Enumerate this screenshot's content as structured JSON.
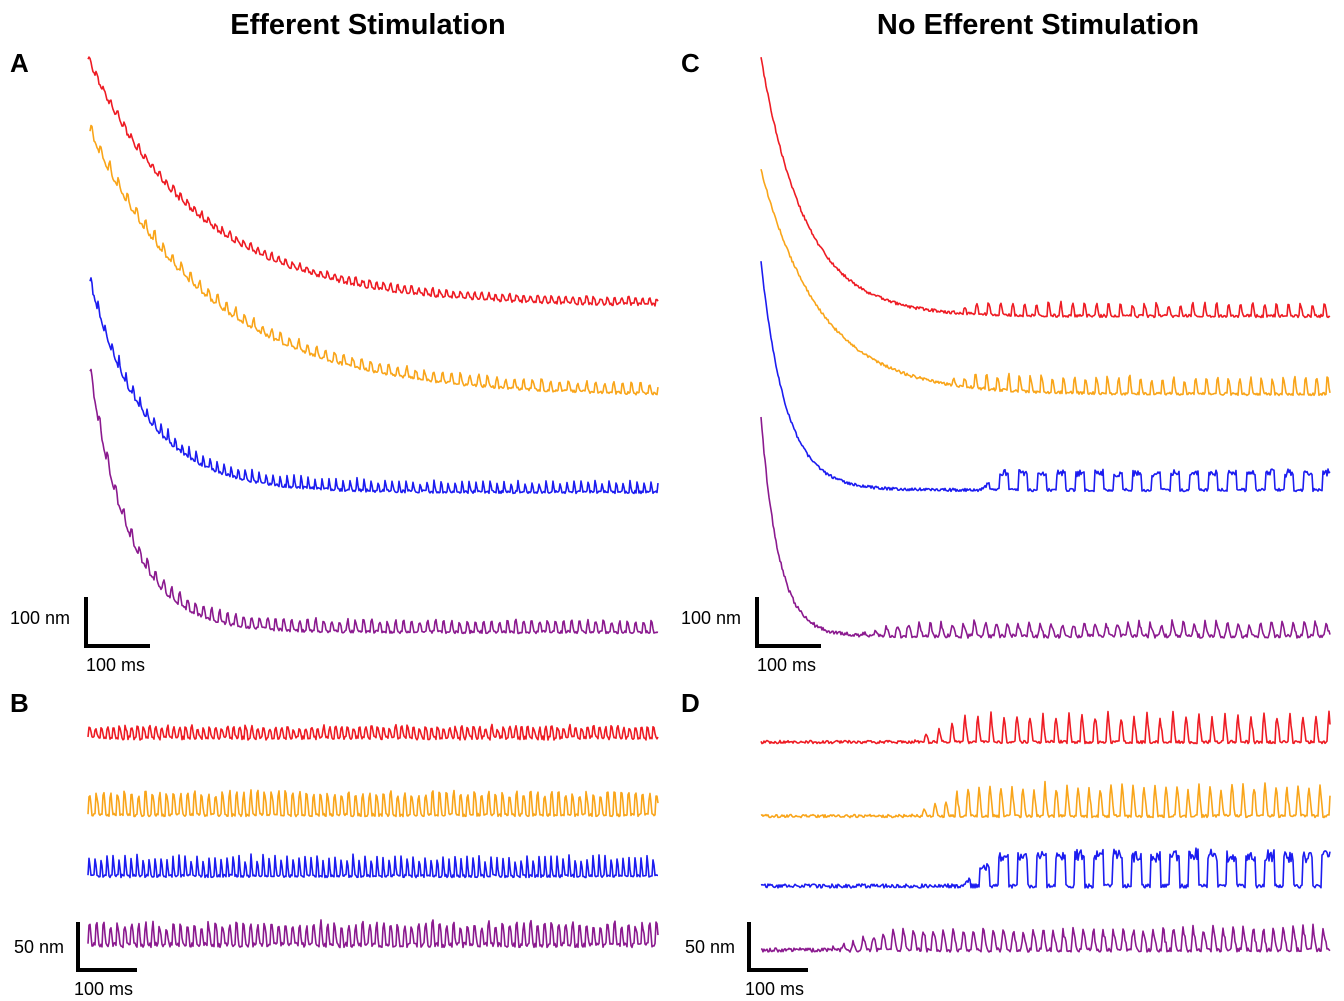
{
  "figure": {
    "columns": [
      {
        "title": "Efferent Stimulation"
      },
      {
        "title": "No Efferent Stimulation"
      }
    ],
    "colors": {
      "red": "#ee1c24",
      "orange": "#f9a51a",
      "blue": "#1c1cf0",
      "purple": "#8b1a8f"
    }
  },
  "chart_data": [
    {
      "type": "line",
      "panel": "A",
      "title": "",
      "scale_bar": {
        "y_label": "100 nm",
        "x_label": "100 ms"
      },
      "trace_order": [
        "red",
        "orange",
        "blue",
        "purple"
      ]
    },
    {
      "type": "line",
      "panel": "B",
      "title": "",
      "scale_bar": {
        "y_label": "50 nm",
        "x_label": "100 ms"
      },
      "trace_order": [
        "red",
        "orange",
        "blue",
        "purple"
      ]
    },
    {
      "type": "line",
      "panel": "C",
      "title": "",
      "scale_bar": {
        "y_label": "100 nm",
        "x_label": "100 ms"
      },
      "trace_order": [
        "red",
        "orange",
        "blue",
        "purple"
      ]
    },
    {
      "type": "line",
      "panel": "D",
      "title": "",
      "scale_bar": {
        "y_label": "50 nm",
        "x_label": "100 ms"
      },
      "trace_order": [
        "red",
        "orange",
        "blue",
        "purple"
      ]
    }
  ]
}
